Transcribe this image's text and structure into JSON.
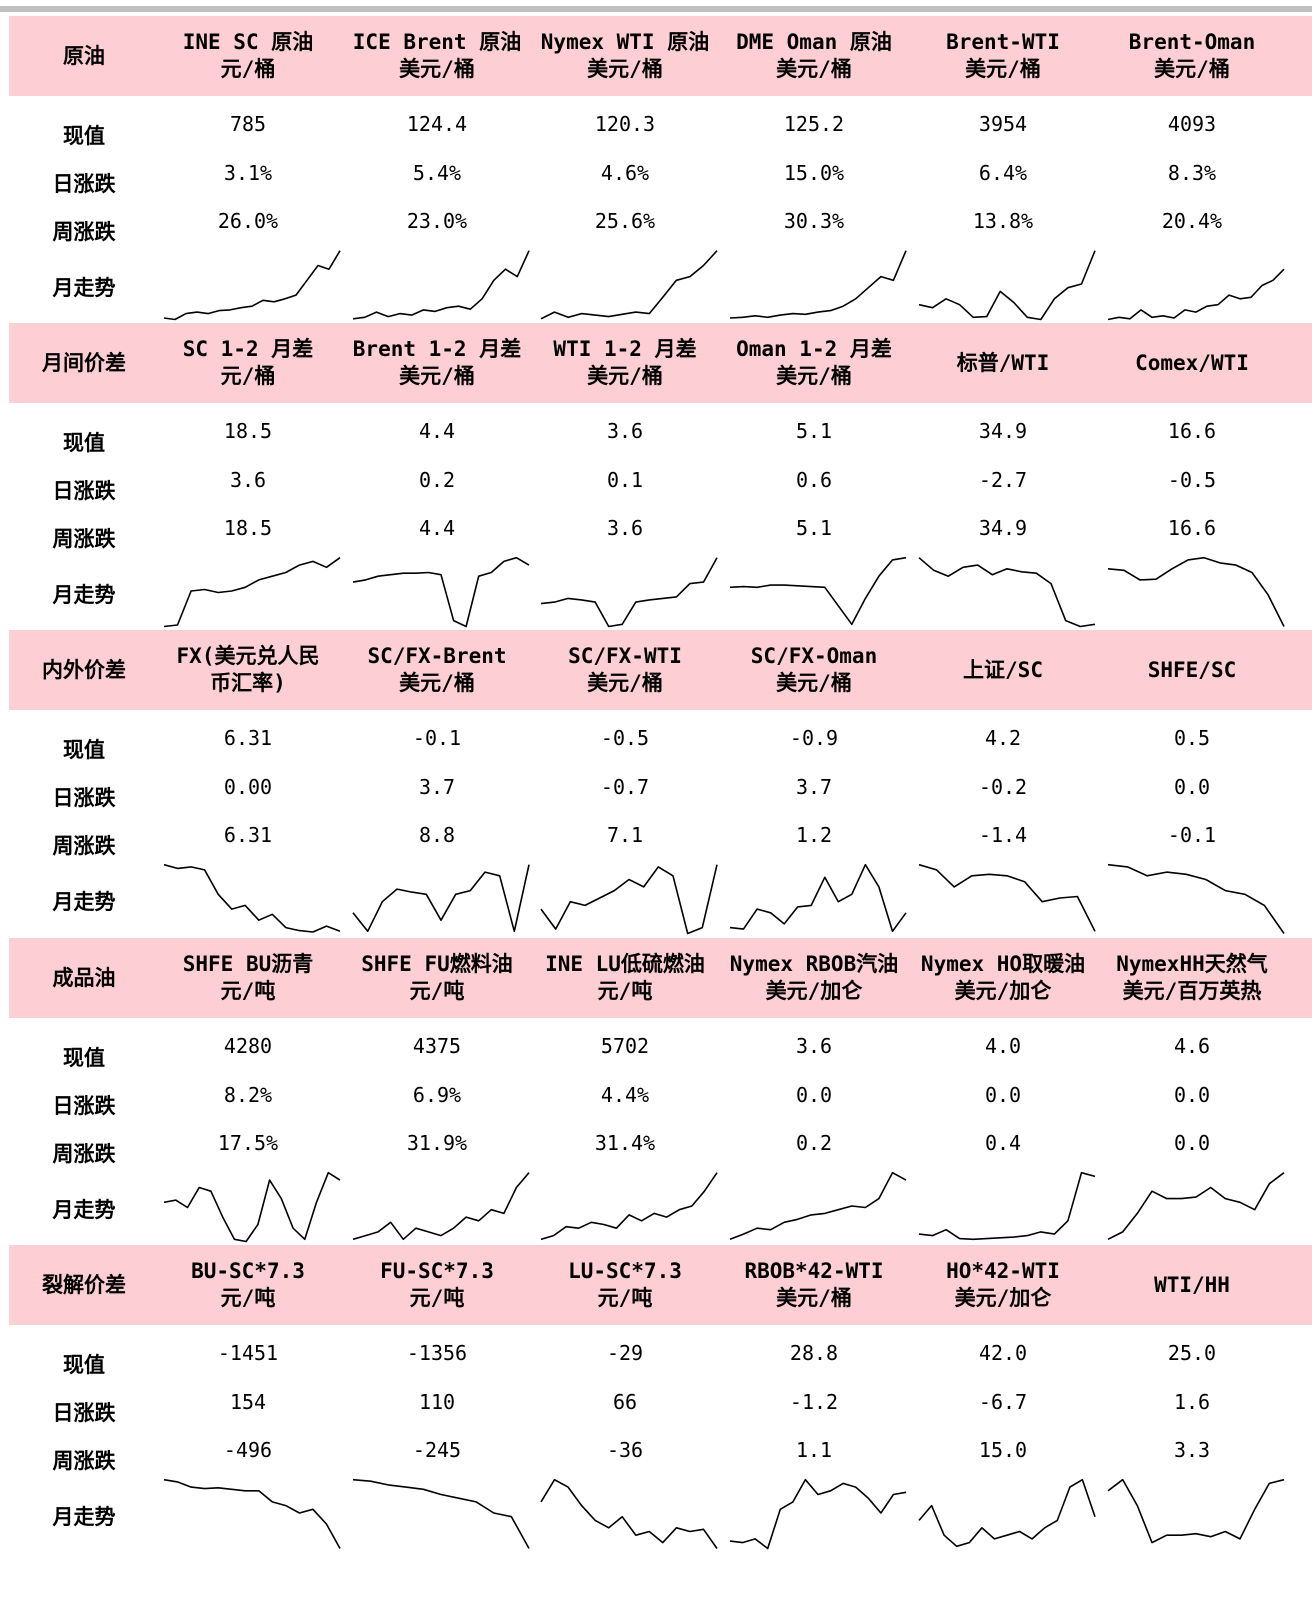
{
  "row_labels": {
    "current": "现值",
    "daily": "日涨跌",
    "weekly": "周涨跌",
    "trend": "月走势"
  },
  "sections": [
    {
      "title": "原油",
      "columns": [
        {
          "name": "INE SC 原油",
          "unit": "元/桶",
          "current": "785",
          "daily": "3.1%",
          "weekly": "26.0%",
          "trend": [
            0.04,
            0.02,
            0.1,
            0.12,
            0.1,
            0.14,
            0.15,
            0.18,
            0.2,
            0.28,
            0.26,
            0.3,
            0.35,
            0.55,
            0.75,
            0.7,
            0.95
          ]
        },
        {
          "name": "ICE Brent 原油",
          "unit": "美元/桶",
          "current": "124.4",
          "daily": "5.4%",
          "weekly": "23.0%",
          "trend": [
            0.03,
            0.05,
            0.12,
            0.06,
            0.1,
            0.08,
            0.15,
            0.13,
            0.18,
            0.2,
            0.16,
            0.3,
            0.55,
            0.7,
            0.6,
            0.95
          ]
        },
        {
          "name": "Nymex WTI 原油",
          "unit": "美元/桶",
          "current": "120.3",
          "daily": "4.6%",
          "weekly": "25.6%",
          "trend": [
            0.03,
            0.12,
            0.05,
            0.1,
            0.08,
            0.06,
            0.09,
            0.12,
            0.1,
            0.32,
            0.55,
            0.6,
            0.75,
            0.95
          ]
        },
        {
          "name": "DME Oman 原油",
          "unit": "美元/桶",
          "current": "125.2",
          "daily": "15.0%",
          "weekly": "30.3%",
          "trend": [
            0.04,
            0.05,
            0.07,
            0.05,
            0.08,
            0.1,
            0.09,
            0.12,
            0.14,
            0.2,
            0.3,
            0.45,
            0.6,
            0.55,
            0.95
          ]
        },
        {
          "name": "Brent-WTI",
          "unit": "美元/桶",
          "current": "3954",
          "daily": "6.4%",
          "weekly": "13.8%",
          "trend": [
            0.22,
            0.18,
            0.3,
            0.22,
            0.05,
            0.06,
            0.4,
            0.25,
            0.05,
            0.02,
            0.3,
            0.45,
            0.5,
            0.95
          ]
        },
        {
          "name": "Brent-Oman",
          "unit": "美元/桶",
          "current": "4093",
          "daily": "8.3%",
          "weekly": "20.4%",
          "trend": [
            0.02,
            0.05,
            0.03,
            0.15,
            0.05,
            0.07,
            0.04,
            0.15,
            0.12,
            0.2,
            0.22,
            0.35,
            0.3,
            0.32,
            0.48,
            0.55,
            0.7
          ]
        }
      ]
    },
    {
      "title": "月间价差",
      "columns": [
        {
          "name": "SC 1-2 月差",
          "unit": "元/桶",
          "current": "18.5",
          "daily": "3.6",
          "weekly": "18.5",
          "trend": [
            0.02,
            0.04,
            0.5,
            0.52,
            0.48,
            0.5,
            0.55,
            0.65,
            0.7,
            0.75,
            0.85,
            0.9,
            0.82,
            0.95
          ]
        },
        {
          "name": "Brent 1-2 月差",
          "unit": "美元/桶",
          "current": "4.4",
          "daily": "0.2",
          "weekly": "4.4",
          "trend": [
            0.62,
            0.65,
            0.7,
            0.72,
            0.74,
            0.74,
            0.75,
            0.72,
            0.1,
            0.02,
            0.7,
            0.75,
            0.9,
            0.95,
            0.85
          ]
        },
        {
          "name": "WTI 1-2 月差",
          "unit": "美元/桶",
          "current": "3.6",
          "daily": "0.1",
          "weekly": "3.6",
          "trend": [
            0.33,
            0.35,
            0.4,
            0.38,
            0.35,
            0.02,
            0.05,
            0.35,
            0.38,
            0.4,
            0.42,
            0.6,
            0.62,
            0.95
          ]
        },
        {
          "name": "Oman 1-2 月差",
          "unit": "美元/桶",
          "current": "5.1",
          "daily": "0.6",
          "weekly": "5.1",
          "trend": [
            0.55,
            0.56,
            0.55,
            0.58,
            0.58,
            0.57,
            0.56,
            0.55,
            0.3,
            0.05,
            0.4,
            0.7,
            0.92,
            0.95
          ]
        },
        {
          "name": "标普/WTI",
          "unit": "",
          "current": "34.9",
          "daily": "-2.7",
          "weekly": "34.9",
          "trend": [
            0.95,
            0.78,
            0.7,
            0.82,
            0.85,
            0.72,
            0.8,
            0.76,
            0.74,
            0.6,
            0.1,
            0.02,
            0.05
          ]
        },
        {
          "name": "Comex/WTI",
          "unit": "",
          "current": "16.6",
          "daily": "-0.5",
          "weekly": "16.6",
          "trend": [
            0.8,
            0.78,
            0.65,
            0.66,
            0.8,
            0.92,
            0.95,
            0.88,
            0.85,
            0.75,
            0.45,
            0.02
          ]
        }
      ]
    },
    {
      "title": "内外价差",
      "columns": [
        {
          "name": "FX(美元兑人民币汇率)",
          "name_lines": [
            "FX(美元兑人民",
            "币汇率)"
          ],
          "unit": "",
          "current": "6.31",
          "daily": "0.00",
          "weekly": "6.31",
          "trend": [
            0.95,
            0.9,
            0.92,
            0.88,
            0.55,
            0.35,
            0.4,
            0.2,
            0.28,
            0.1,
            0.06,
            0.04,
            0.12,
            0.05
          ]
        },
        {
          "name": "SC/FX-Brent",
          "unit": "美元/桶",
          "current": "-0.1",
          "daily": "3.7",
          "weekly": "8.8",
          "trend": [
            0.3,
            0.05,
            0.45,
            0.62,
            0.58,
            0.55,
            0.2,
            0.55,
            0.6,
            0.85,
            0.8,
            0.05,
            0.95
          ]
        },
        {
          "name": "SC/FX-WTI",
          "unit": "美元/桶",
          "current": "-0.5",
          "daily": "-0.7",
          "weekly": "7.1",
          "trend": [
            0.35,
            0.08,
            0.45,
            0.4,
            0.5,
            0.6,
            0.75,
            0.65,
            0.92,
            0.8,
            0.02,
            0.1,
            0.95
          ]
        },
        {
          "name": "SC/FX-Oman",
          "unit": "美元/桶",
          "current": "-0.9",
          "daily": "3.7",
          "weekly": "1.2",
          "trend": [
            0.1,
            0.08,
            0.35,
            0.3,
            0.15,
            0.38,
            0.4,
            0.78,
            0.45,
            0.55,
            0.95,
            0.65,
            0.05,
            0.3
          ]
        },
        {
          "name": "上证/SC",
          "unit": "",
          "current": "4.2",
          "daily": "-0.2",
          "weekly": "-1.4",
          "trend": [
            0.95,
            0.88,
            0.65,
            0.8,
            0.82,
            0.8,
            0.72,
            0.45,
            0.5,
            0.52,
            0.05
          ]
        },
        {
          "name": "SHFE/SC",
          "unit": "",
          "current": "0.5",
          "daily": "0.0",
          "weekly": "-0.1",
          "trend": [
            0.95,
            0.92,
            0.8,
            0.85,
            0.82,
            0.75,
            0.6,
            0.55,
            0.4,
            0.02
          ]
        }
      ]
    },
    {
      "title": "成品油",
      "columns": [
        {
          "name": "SHFE BU沥青",
          "unit": "元/吨",
          "current": "4280",
          "daily": "8.2%",
          "weekly": "17.5%",
          "trend": [
            0.55,
            0.58,
            0.48,
            0.75,
            0.7,
            0.35,
            0.05,
            0.02,
            0.25,
            0.85,
            0.6,
            0.2,
            0.05,
            0.55,
            0.95,
            0.85
          ]
        },
        {
          "name": "SHFE FU燃料油",
          "unit": "元/吨",
          "current": "4375",
          "daily": "6.9%",
          "weekly": "31.9%",
          "trend": [
            0.05,
            0.1,
            0.15,
            0.28,
            0.05,
            0.2,
            0.15,
            0.1,
            0.2,
            0.35,
            0.3,
            0.45,
            0.4,
            0.75,
            0.95
          ]
        },
        {
          "name": "INE LU低硫燃油",
          "unit": "元/吨",
          "current": "5702",
          "daily": "4.4%",
          "weekly": "31.4%",
          "trend": [
            0.05,
            0.1,
            0.22,
            0.2,
            0.28,
            0.25,
            0.2,
            0.38,
            0.3,
            0.4,
            0.35,
            0.45,
            0.5,
            0.7,
            0.95
          ]
        },
        {
          "name": "Nymex RBOB汽油",
          "unit": "美元/加仑",
          "current": "3.6",
          "daily": "0.0",
          "weekly": "0.2",
          "trend": [
            0.05,
            0.12,
            0.2,
            0.18,
            0.28,
            0.32,
            0.38,
            0.4,
            0.45,
            0.5,
            0.48,
            0.6,
            0.95,
            0.85
          ]
        },
        {
          "name": "Nymex HO取暖油",
          "unit": "美元/加仑",
          "current": "4.0",
          "daily": "0.0",
          "weekly": "0.4",
          "trend": [
            0.12,
            0.1,
            0.18,
            0.06,
            0.05,
            0.06,
            0.07,
            0.08,
            0.1,
            0.15,
            0.12,
            0.3,
            0.95,
            0.9
          ]
        },
        {
          "name": "NymexHH天然气",
          "unit": "美元/百万英热",
          "current": "4.6",
          "daily": "0.0",
          "weekly": "0.0",
          "trend": [
            0.05,
            0.15,
            0.4,
            0.7,
            0.6,
            0.6,
            0.62,
            0.75,
            0.6,
            0.55,
            0.45,
            0.8,
            0.95
          ]
        }
      ]
    },
    {
      "title": "裂解价差",
      "columns": [
        {
          "name": "BU-SC*7.3",
          "unit": "元/吨",
          "current": "-1451",
          "daily": "154",
          "weekly": "-496",
          "trend": [
            0.95,
            0.92,
            0.85,
            0.83,
            0.84,
            0.82,
            0.8,
            0.8,
            0.65,
            0.6,
            0.5,
            0.55,
            0.35,
            0.02
          ]
        },
        {
          "name": "FU-SC*7.3",
          "unit": "元/吨",
          "current": "-1356",
          "daily": "110",
          "weekly": "-245",
          "trend": [
            0.95,
            0.93,
            0.88,
            0.85,
            0.82,
            0.75,
            0.7,
            0.65,
            0.5,
            0.45,
            0.02
          ]
        },
        {
          "name": "LU-SC*7.3",
          "unit": "元/吨",
          "current": "-29",
          "daily": "66",
          "weekly": "-36",
          "trend": [
            0.65,
            0.95,
            0.85,
            0.6,
            0.4,
            0.3,
            0.45,
            0.2,
            0.25,
            0.1,
            0.3,
            0.25,
            0.28,
            0.02
          ]
        },
        {
          "name": "RBOB*42-WTI",
          "unit": "美元/桶",
          "current": "28.8",
          "daily": "-1.2",
          "weekly": "1.1",
          "trend": [
            0.12,
            0.1,
            0.15,
            0.02,
            0.55,
            0.65,
            0.95,
            0.75,
            0.8,
            0.9,
            0.85,
            0.7,
            0.5,
            0.75,
            0.78
          ]
        },
        {
          "name": "HO*42-WTI",
          "unit": "美元/加仑",
          "current": "42.0",
          "daily": "-6.7",
          "weekly": "15.0",
          "trend": [
            0.4,
            0.6,
            0.2,
            0.05,
            0.1,
            0.3,
            0.15,
            0.2,
            0.25,
            0.15,
            0.3,
            0.4,
            0.85,
            0.95,
            0.45
          ]
        },
        {
          "name": "WTI/HH",
          "unit": "",
          "current": "25.0",
          "daily": "1.6",
          "weekly": "3.3",
          "trend": [
            0.8,
            0.95,
            0.6,
            0.1,
            0.2,
            0.2,
            0.22,
            0.18,
            0.25,
            0.15,
            0.55,
            0.9,
            0.95
          ]
        }
      ]
    }
  ]
}
